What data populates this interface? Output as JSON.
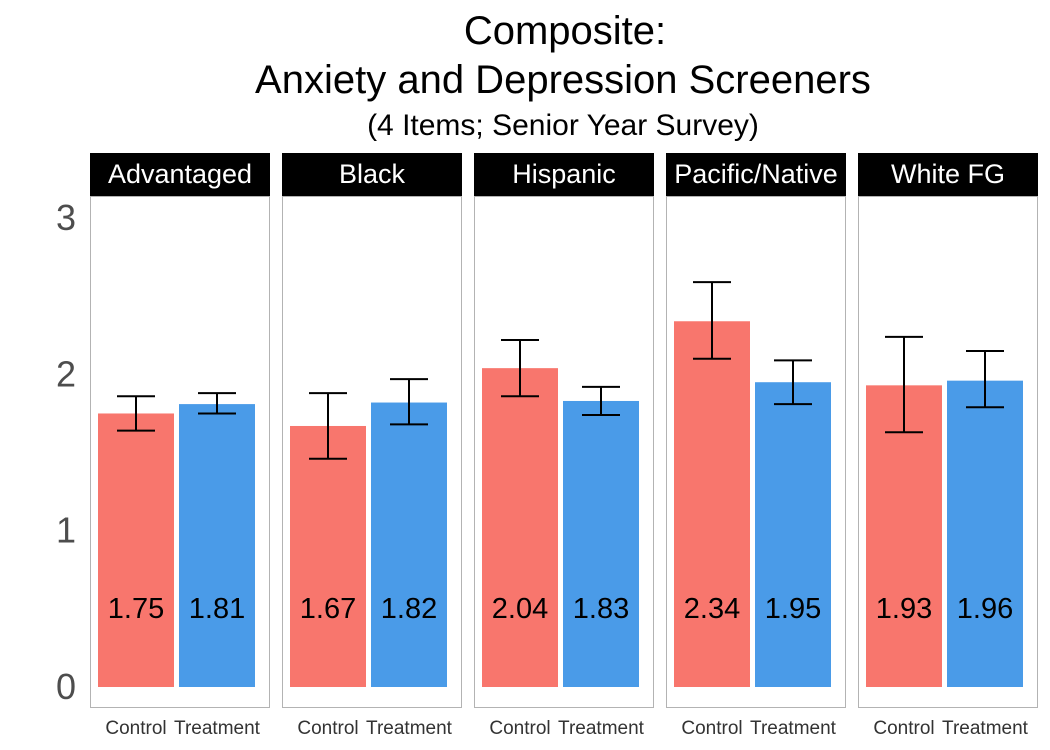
{
  "chart_data": {
    "type": "bar",
    "title_line1": "Composite:",
    "title_line2": "Anxiety and Depression Screeners",
    "subtitle": "(4 Items; Senior Year Survey)",
    "xlabel": "",
    "ylabel": "",
    "ylim": [
      0,
      3.2
    ],
    "yticks": [
      "0",
      "1",
      "2",
      "3"
    ],
    "ytick_values": [
      0,
      1,
      2,
      3
    ],
    "categories": [
      "Control",
      "Treatment"
    ],
    "series_colors": {
      "Control": "#F8766D",
      "Treatment": "#4A9BE8"
    },
    "grid": false,
    "legend": "none",
    "panels": [
      {
        "label": "Advantaged",
        "bars": [
          {
            "group": "Control",
            "value": 1.75,
            "label": "1.75",
            "err_low": 1.64,
            "err_high": 1.86
          },
          {
            "group": "Treatment",
            "value": 1.81,
            "label": "1.81",
            "err_low": 1.75,
            "err_high": 1.88
          }
        ]
      },
      {
        "label": "Black",
        "bars": [
          {
            "group": "Control",
            "value": 1.67,
            "label": "1.67",
            "err_low": 1.46,
            "err_high": 1.88
          },
          {
            "group": "Treatment",
            "value": 1.82,
            "label": "1.82",
            "err_low": 1.68,
            "err_high": 1.97
          }
        ]
      },
      {
        "label": "Hispanic",
        "bars": [
          {
            "group": "Control",
            "value": 2.04,
            "label": "2.04",
            "err_low": 1.86,
            "err_high": 2.22
          },
          {
            "group": "Treatment",
            "value": 1.83,
            "label": "1.83",
            "err_low": 1.74,
            "err_high": 1.92
          }
        ]
      },
      {
        "label": "Pacific/Native",
        "bars": [
          {
            "group": "Control",
            "value": 2.34,
            "label": "2.34",
            "err_low": 2.1,
            "err_high": 2.59
          },
          {
            "group": "Treatment",
            "value": 1.95,
            "label": "1.95",
            "err_low": 1.81,
            "err_high": 2.09
          }
        ]
      },
      {
        "label": "White FG",
        "bars": [
          {
            "group": "Control",
            "value": 1.93,
            "label": "1.93",
            "err_low": 1.63,
            "err_high": 2.24
          },
          {
            "group": "Treatment",
            "value": 1.96,
            "label": "1.96",
            "err_low": 1.79,
            "err_high": 2.15
          }
        ]
      }
    ]
  }
}
